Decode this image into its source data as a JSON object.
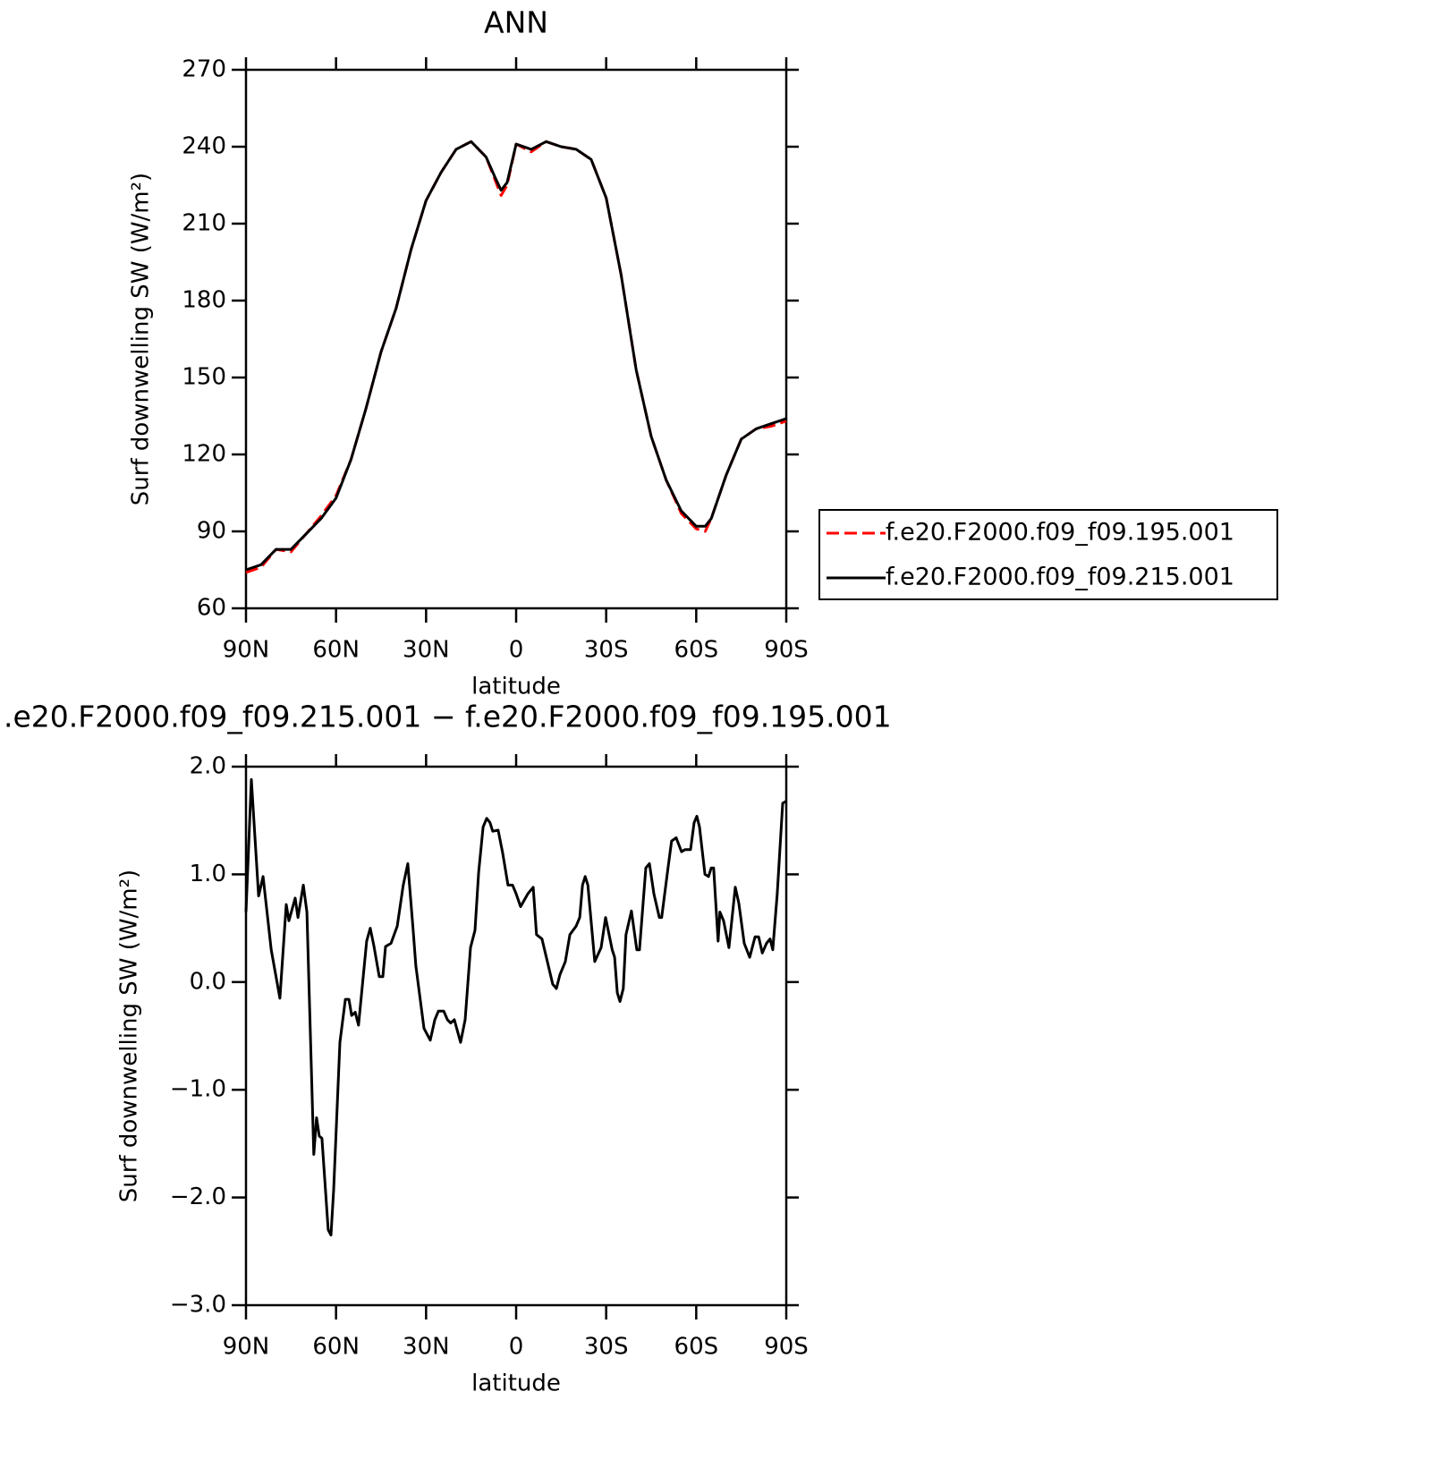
{
  "chart_data": [
    {
      "type": "line",
      "title": "ANN",
      "xlabel": "latitude",
      "ylabel": "Surf downwelling SW (W/m²)",
      "x": [
        90,
        85,
        80,
        75,
        70,
        65,
        60,
        55,
        50,
        45,
        40,
        35,
        30,
        25,
        20,
        15,
        10,
        7,
        5,
        3,
        0,
        -5,
        -10,
        -15,
        -20,
        -25,
        -30,
        -35,
        -40,
        -45,
        -50,
        -55,
        -60,
        -63,
        -65,
        -70,
        -75,
        -80,
        -85,
        -90
      ],
      "series": [
        {
          "name": "f.e20.F2000.f09_f09.195.001",
          "color": "#ff0000",
          "line_style": "dashed",
          "values": [
            74,
            76,
            83,
            82,
            89,
            96,
            104,
            118,
            138,
            160,
            177,
            200,
            219,
            230,
            239,
            242,
            236,
            227,
            221,
            225,
            241,
            238,
            242,
            240,
            239,
            235,
            220,
            190,
            153,
            127,
            110,
            97,
            91,
            90,
            95,
            112,
            126,
            130,
            131,
            133
          ]
        },
        {
          "name": "f.e20.F2000.f09_f09.215.001",
          "color": "#000000",
          "line_style": "solid",
          "values": [
            75,
            77,
            83,
            83,
            89,
            95,
            103,
            118,
            138,
            160,
            177,
            200,
            219,
            230,
            239,
            242,
            236,
            228,
            223,
            226,
            241,
            239,
            242,
            240,
            239,
            235,
            220,
            190,
            153,
            127,
            110,
            98,
            92,
            92,
            95,
            112,
            126,
            130,
            132,
            134
          ]
        }
      ],
      "xlim": [
        90,
        -90
      ],
      "xticks": [
        {
          "value": 90,
          "label": "90N"
        },
        {
          "value": 60,
          "label": "60N"
        },
        {
          "value": 30,
          "label": "30N"
        },
        0,
        {
          "value": -30,
          "label": "30S"
        },
        {
          "value": -60,
          "label": "60S"
        },
        {
          "value": -90,
          "label": "90S"
        }
      ],
      "ylim": [
        60,
        270
      ],
      "yticks": [
        60,
        90,
        120,
        150,
        180,
        210,
        240,
        270
      ],
      "legend": "right"
    },
    {
      "type": "line",
      "title": ".e20.F2000.f09_f09.215.001 − f.e20.F2000.f09_f09.195.001",
      "xlabel": "latitude",
      "ylabel": "Surf downwelling SW (W/m²)",
      "x": [
        90,
        88.2,
        85.8,
        84.3,
        81.6,
        78.7,
        76.6,
        75.7,
        73.6,
        72.7,
        70.9,
        69.7,
        67.4,
        66.5,
        65.6,
        64.7,
        62.6,
        61.7,
        60.8,
        58.7,
        56.9,
        55.7,
        54.8,
        53.6,
        52.5,
        49.8,
        48.6,
        47.4,
        45.6,
        44.4,
        43.5,
        41.7,
        39.6,
        37.6,
        36.1,
        34.3,
        33.4,
        30.7,
        28.6,
        27.1,
        25.9,
        24.1,
        22.9,
        21.8,
        20.6,
        18.5,
        17.0,
        15.2,
        13.7,
        12.5,
        11.0,
        9.8,
        8.7,
        7.8,
        6.0,
        4.5,
        2.7,
        1.2,
        0,
        -1.5,
        -3.9,
        -5.7,
        -6.8,
        -8.6,
        -10.4,
        -12.2,
        -13.4,
        -14.6,
        -16.4,
        -17.9,
        -20.0,
        -21.2,
        -22.1,
        -23.0,
        -23.9,
        -26.2,
        -28.3,
        -29.8,
        -32.0,
        -32.8,
        -33.7,
        -34.6,
        -35.7,
        -36.6,
        -38.4,
        -40.2,
        -41.1,
        -43.2,
        -44.4,
        -45.9,
        -47.7,
        -48.5,
        -50.6,
        -51.8,
        -53.3,
        -55.1,
        -56.3,
        -58.1,
        -59.3,
        -60.2,
        -61.1,
        -62.9,
        -64.1,
        -65.0,
        -65.8,
        -67.3,
        -67.9,
        -69.1,
        -70.9,
        -73.0,
        -74.2,
        -76.0,
        -77.8,
        -79.6,
        -80.8,
        -82.0,
        -83.4,
        -84.6,
        -85.5,
        -87.0,
        -88.8,
        -90
      ],
      "values": [
        0.65,
        1.88,
        0.8,
        0.98,
        0.3,
        -0.15,
        0.72,
        0.57,
        0.78,
        0.6,
        0.9,
        0.65,
        -1.6,
        -1.26,
        -1.43,
        -1.45,
        -2.3,
        -2.35,
        -1.93,
        -0.56,
        -0.16,
        -0.16,
        -0.31,
        -0.28,
        -0.4,
        0.38,
        0.5,
        0.34,
        0.05,
        0.05,
        0.33,
        0.36,
        0.52,
        0.9,
        1.1,
        0.48,
        0.15,
        -0.43,
        -0.54,
        -0.35,
        -0.27,
        -0.27,
        -0.35,
        -0.38,
        -0.35,
        -0.56,
        -0.35,
        0.32,
        0.48,
        1.02,
        1.44,
        1.52,
        1.48,
        1.4,
        1.41,
        1.2,
        0.9,
        0.9,
        0.82,
        0.7,
        0.82,
        0.88,
        0.44,
        0.4,
        0.19,
        -0.02,
        -0.06,
        0.07,
        0.19,
        0.44,
        0.52,
        0.6,
        0.9,
        0.98,
        0.9,
        0.19,
        0.32,
        0.6,
        0.3,
        0.23,
        -0.1,
        -0.18,
        -0.06,
        0.44,
        0.66,
        0.3,
        0.3,
        1.06,
        1.1,
        0.82,
        0.6,
        0.6,
        1.06,
        1.31,
        1.34,
        1.21,
        1.23,
        1.23,
        1.48,
        1.54,
        1.44,
        1.0,
        0.98,
        1.06,
        1.06,
        0.38,
        0.65,
        0.57,
        0.32,
        0.88,
        0.73,
        0.36,
        0.23,
        0.42,
        0.42,
        0.27,
        0.36,
        0.4,
        0.3,
        0.82,
        1.66,
        1.68
      ],
      "color": "#000000",
      "line_style": "solid",
      "xlim": [
        90,
        -90
      ],
      "xticks": [
        {
          "value": 90,
          "label": "90N"
        },
        {
          "value": 60,
          "label": "60N"
        },
        {
          "value": 30,
          "label": "30N"
        },
        0,
        {
          "value": -30,
          "label": "30S"
        },
        {
          "value": -60,
          "label": "60S"
        },
        {
          "value": -90,
          "label": "90S"
        }
      ],
      "ylim": [
        -3,
        2
      ],
      "yticks": [
        {
          "value": -3,
          "label": "−3.0"
        },
        {
          "value": -2,
          "label": "−2.0"
        },
        {
          "value": -1,
          "label": "−1.0"
        },
        {
          "value": 0,
          "label": "0.0"
        },
        {
          "value": 1,
          "label": "1.0"
        },
        {
          "value": 2,
          "label": "2.0"
        }
      ]
    }
  ]
}
